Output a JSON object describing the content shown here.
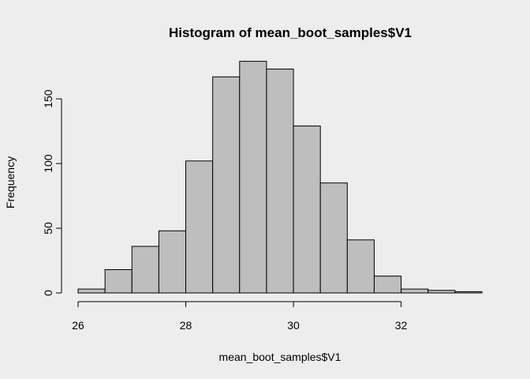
{
  "chart_data": {
    "type": "bar",
    "title": "Histogram of mean_boot_samples$V1",
    "xlabel": "mean_boot_samples$V1",
    "ylabel": "Frequency",
    "bin_edges": [
      26,
      26.5,
      27,
      27.5,
      28,
      28.5,
      29,
      29.5,
      30,
      30.5,
      31,
      31.5,
      32,
      32.5,
      33,
      33.5
    ],
    "values": [
      3,
      18,
      36,
      48,
      102,
      167,
      179,
      173,
      129,
      85,
      41,
      13,
      3,
      2,
      1
    ],
    "xlim": [
      26,
      33.5
    ],
    "ylim": [
      0,
      180
    ],
    "x_ticks": [
      "26",
      "28",
      "30",
      "32"
    ],
    "y_ticks": [
      "0",
      "50",
      "100",
      "150"
    ],
    "grid": false,
    "bar_fill": "#bebebe",
    "background": "#ededed"
  }
}
